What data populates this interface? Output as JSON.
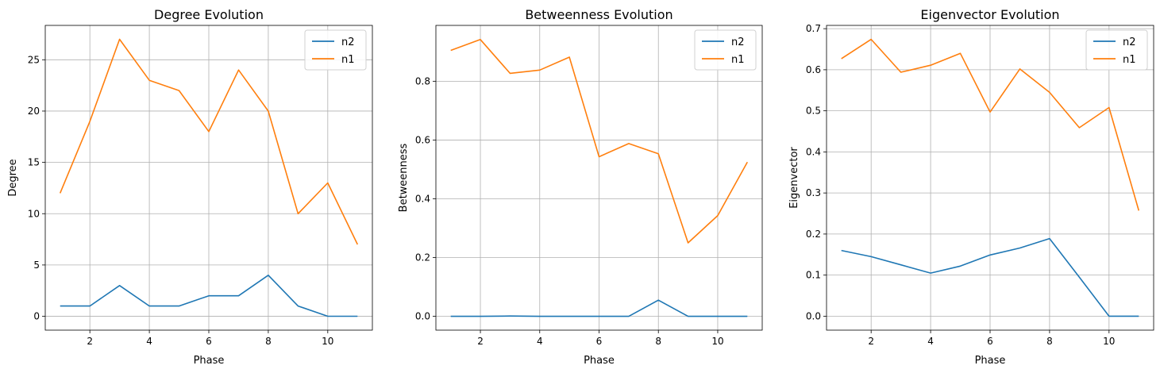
{
  "chart_data": [
    {
      "type": "line",
      "title": "Degree Evolution",
      "xlabel": "Phase",
      "ylabel": "Degree",
      "x": [
        1,
        2,
        3,
        4,
        5,
        6,
        7,
        8,
        9,
        10,
        11
      ],
      "xlim": [
        0.5,
        11.5
      ],
      "ylim": [
        -1.35,
        28.35
      ],
      "xticks": [
        2,
        4,
        6,
        8,
        10
      ],
      "yticks": [
        0,
        5,
        10,
        15,
        20,
        25
      ],
      "yticklabels": [
        "0",
        "5",
        "10",
        "15",
        "20",
        "25"
      ],
      "grid": true,
      "legend": "top-right",
      "series": [
        {
          "name": "n2",
          "color": "#1f77b4",
          "values": [
            1,
            1,
            3,
            1,
            1,
            2,
            2,
            4,
            1,
            0,
            0
          ]
        },
        {
          "name": "n1",
          "color": "#ff7f0e",
          "values": [
            12,
            19,
            27,
            23,
            22,
            18,
            24,
            20,
            10,
            13,
            7
          ]
        }
      ]
    },
    {
      "type": "line",
      "title": "Betweenness Evolution",
      "xlabel": "Phase",
      "ylabel": "Betweenness",
      "x": [
        1,
        2,
        3,
        4,
        5,
        6,
        7,
        8,
        9,
        10,
        11
      ],
      "xlim": [
        0.5,
        11.5
      ],
      "ylim": [
        -0.047,
        0.99
      ],
      "xticks": [
        2,
        4,
        6,
        8,
        10
      ],
      "yticks": [
        0,
        0.2,
        0.4,
        0.6,
        0.8
      ],
      "yticklabels": [
        "0.0",
        "0.2",
        "0.4",
        "0.6",
        "0.8"
      ],
      "grid": true,
      "legend": "top-right",
      "series": [
        {
          "name": "n2",
          "color": "#1f77b4",
          "values": [
            0,
            0,
            0.001,
            0,
            0,
            0,
            0,
            0.055,
            0,
            0,
            0
          ]
        },
        {
          "name": "n1",
          "color": "#ff7f0e",
          "values": [
            0.905,
            0.942,
            0.827,
            0.838,
            0.882,
            0.543,
            0.588,
            0.553,
            0.25,
            0.343,
            0.525
          ]
        }
      ]
    },
    {
      "type": "line",
      "title": "Eigenvector Evolution",
      "xlabel": "Phase",
      "ylabel": "Eigenvector",
      "x": [
        1,
        2,
        3,
        4,
        5,
        6,
        7,
        8,
        9,
        10,
        11
      ],
      "xlim": [
        0.5,
        11.5
      ],
      "ylim": [
        -0.034,
        0.708
      ],
      "xticks": [
        2,
        4,
        6,
        8,
        10
      ],
      "yticks": [
        0,
        0.1,
        0.2,
        0.3,
        0.4,
        0.5,
        0.6,
        0.7
      ],
      "yticklabels": [
        "0.0",
        "0.1",
        "0.2",
        "0.3",
        "0.4",
        "0.5",
        "0.6",
        "0.7"
      ],
      "grid": true,
      "legend": "top-right",
      "series": [
        {
          "name": "n2",
          "color": "#1f77b4",
          "values": [
            0.16,
            0.145,
            0.125,
            0.105,
            0.122,
            0.149,
            0.166,
            0.189,
            0.095,
            0,
            0
          ]
        },
        {
          "name": "n1",
          "color": "#ff7f0e",
          "values": [
            0.627,
            0.674,
            0.594,
            0.611,
            0.64,
            0.497,
            0.602,
            0.545,
            0.459,
            0.508,
            0.257
          ]
        }
      ]
    }
  ]
}
